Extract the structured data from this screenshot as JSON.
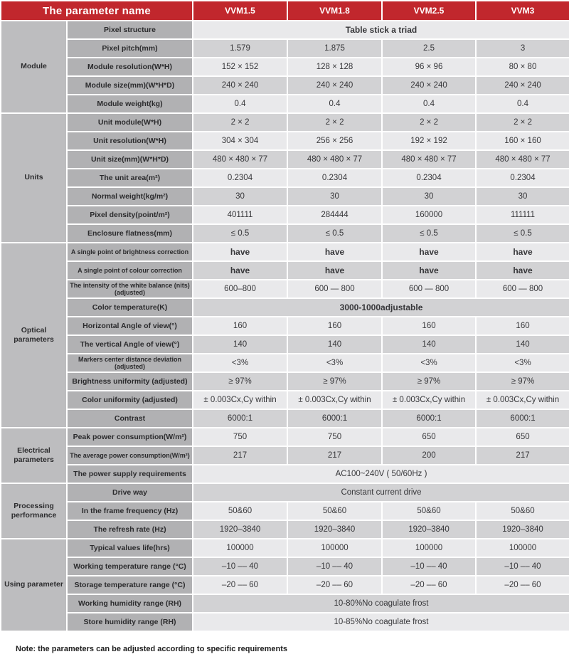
{
  "colors": {
    "header_red": "#c1272d"
  },
  "header": {
    "param_col_label": "The parameter name",
    "models": [
      "VVM1.5",
      "VVM1.8",
      "VVM2.5",
      "VVM3"
    ]
  },
  "sections": [
    {
      "category": "Module",
      "rows": [
        {
          "label": "Pixel structure",
          "span": "Table stick a triad",
          "bold": true
        },
        {
          "label": "Pixel pitch(mm)",
          "values": [
            "1.579",
            "1.875",
            "2.5",
            "3"
          ]
        },
        {
          "label": "Module resolution(W*H)",
          "values": [
            "152 × 152",
            "128 × 128",
            "96 × 96",
            "80 × 80"
          ]
        },
        {
          "label": "Module size(mm)(W*H*D)",
          "values": [
            "240 × 240",
            "240 × 240",
            "240 × 240",
            "240 × 240"
          ]
        },
        {
          "label": "Module weight(kg)",
          "values": [
            "0.4",
            "0.4",
            "0.4",
            "0.4"
          ]
        }
      ]
    },
    {
      "category": "Units",
      "rows": [
        {
          "label": "Unit module(W*H)",
          "values": [
            "2 × 2",
            "2 × 2",
            "2 × 2",
            "2 × 2"
          ]
        },
        {
          "label": "Unit resolution(W*H)",
          "values": [
            "304 × 304",
            "256 × 256",
            "192 × 192",
            "160 × 160"
          ]
        },
        {
          "label": "Unit size(mm)(W*H*D)",
          "values": [
            "480 × 480 × 77",
            "480 × 480 × 77",
            "480 × 480 × 77",
            "480 × 480 × 77"
          ]
        },
        {
          "label": "The unit area(m²)",
          "values": [
            "0.2304",
            "0.2304",
            "0.2304",
            "0.2304"
          ]
        },
        {
          "label": "Normal weight(kg/m²)",
          "values": [
            "30",
            "30",
            "30",
            "30"
          ]
        },
        {
          "label": "Pixel density(point/m²)",
          "values": [
            "401111",
            "284444",
            "160000",
            "111111"
          ]
        },
        {
          "label": "Enclosure flatness(mm)",
          "values": [
            "≤ 0.5",
            "≤ 0.5",
            "≤ 0.5",
            "≤ 0.5"
          ]
        }
      ]
    },
    {
      "category": "Optical parameters",
      "rows": [
        {
          "label": "A single point of brightness correction",
          "small": true,
          "values": [
            "have",
            "have",
            "have",
            "have"
          ],
          "bold": true
        },
        {
          "label": "A single point of colour correction",
          "small": true,
          "values": [
            "have",
            "have",
            "have",
            "have"
          ],
          "bold": true
        },
        {
          "label": "The intensity of the white balance (nits) (adjusted)",
          "small": true,
          "values": [
            "600–800",
            "600 — 800",
            "600 — 800",
            "600 — 800"
          ]
        },
        {
          "label": "Color temperature(K)",
          "span": "3000-1000adjustable",
          "bold": true
        },
        {
          "label": "Horizontal Angle of view(°)",
          "values": [
            "160",
            "160",
            "160",
            "160"
          ]
        },
        {
          "label": "The vertical Angle of view(°)",
          "values": [
            "140",
            "140",
            "140",
            "140"
          ]
        },
        {
          "label": "Markers center distance deviation (adjusted)",
          "small": true,
          "values": [
            "<3%",
            "<3%",
            "<3%",
            "<3%"
          ]
        },
        {
          "label": "Brightness uniformity (adjusted)",
          "values": [
            "≥ 97%",
            "≥ 97%",
            "≥ 97%",
            "≥ 97%"
          ]
        },
        {
          "label": "Color uniformity (adjusted)",
          "values": [
            "± 0.003Cx,Cy within",
            "± 0.003Cx,Cy within",
            "± 0.003Cx,Cy within",
            "± 0.003Cx,Cy within"
          ]
        },
        {
          "label": "Contrast",
          "values": [
            "6000:1",
            "6000:1",
            "6000:1",
            "6000:1"
          ]
        }
      ]
    },
    {
      "category": "Electrical parameters",
      "rows": [
        {
          "label": "Peak power consumption(W/m²)",
          "values": [
            "750",
            "750",
            "650",
            "650"
          ]
        },
        {
          "label": "The average power consumption(W/m²)",
          "small": true,
          "values": [
            "217",
            "217",
            "200",
            "217"
          ]
        },
        {
          "label": "The power supply requirements",
          "span": "AC100~240V ( 50/60Hz )",
          "lines": true
        }
      ]
    },
    {
      "category": "Processing performance",
      "rows": [
        {
          "label": "Drive way",
          "span": "Constant current drive",
          "lines": true
        },
        {
          "label": "In the frame frequency (Hz)",
          "values": [
            "50&60",
            "50&60",
            "50&60",
            "50&60"
          ]
        },
        {
          "label": "The refresh rate (Hz)",
          "values": [
            "1920–3840",
            "1920–3840",
            "1920–3840",
            "1920–3840"
          ]
        }
      ]
    },
    {
      "category": "Using parameter",
      "rows": [
        {
          "label": "Typical values life(hrs)",
          "values": [
            "100000",
            "100000",
            "100000",
            "100000"
          ]
        },
        {
          "label": "Working temperature range (°C)",
          "values": [
            "–10 –– 40",
            "–10 –– 40",
            "–10 –– 40",
            "–10 –– 40"
          ]
        },
        {
          "label": "Storage temperature range (°C)",
          "values": [
            "–20 –– 60",
            "–20 –– 60",
            "–20 –– 60",
            "–20 –– 60"
          ]
        },
        {
          "label": "Working humidity range (RH)",
          "span": "10-80%No coagulate frost",
          "lines": true
        },
        {
          "label": "Store humidity range (RH)",
          "span": "10-85%No coagulate frost",
          "lines": true
        }
      ]
    }
  ],
  "note": "Note: the parameters can be adjusted according to specific requirements"
}
